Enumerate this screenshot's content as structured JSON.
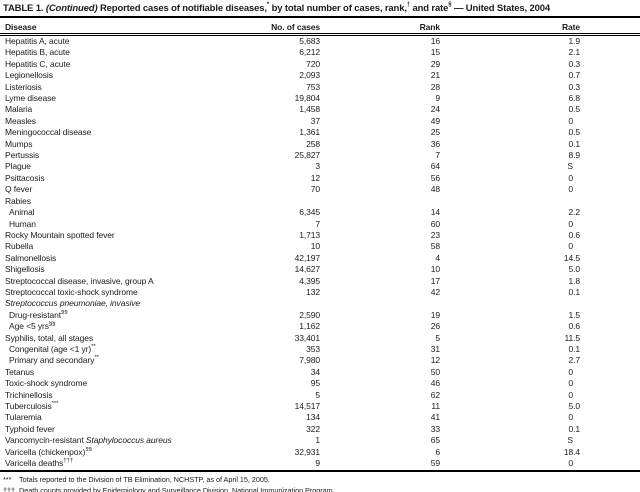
{
  "title": {
    "parts": [
      {
        "t": "TABLE 1. "
      },
      {
        "t": "(Continued)",
        "i": true
      },
      {
        "t": " Reported cases of notifiable diseases,"
      },
      {
        "t": "*",
        "sup": true
      },
      {
        "t": " by total number of cases, rank,"
      },
      {
        "t": "†",
        "sup": true
      },
      {
        "t": " and rate"
      },
      {
        "t": "§",
        "sup": true
      },
      {
        "t": " — United States, 2004"
      }
    ]
  },
  "table": {
    "columns": [
      "Disease",
      "No. of cases",
      "Rank",
      "Rate"
    ],
    "rows": [
      {
        "label": [
          {
            "t": "Hepatitis A, acute"
          }
        ],
        "cases": "5,683",
        "rank": "16",
        "rate": "1.9"
      },
      {
        "label": [
          {
            "t": "Hepatitis B, acute"
          }
        ],
        "cases": "6,212",
        "rank": "15",
        "rate": "2.1"
      },
      {
        "label": [
          {
            "t": "Hepatitis C, acute"
          }
        ],
        "cases": "720",
        "rank": "29",
        "rate": "0.3"
      },
      {
        "label": [
          {
            "t": "Legionellosis"
          }
        ],
        "cases": "2,093",
        "rank": "21",
        "rate": "0.7"
      },
      {
        "label": [
          {
            "t": "Listeriosis"
          }
        ],
        "cases": "753",
        "rank": "28",
        "rate": "0.3"
      },
      {
        "label": [
          {
            "t": "Lyme disease"
          }
        ],
        "cases": "19,804",
        "rank": "9",
        "rate": "6.8"
      },
      {
        "label": [
          {
            "t": "Malaria"
          }
        ],
        "cases": "1,458",
        "rank": "24",
        "rate": "0.5"
      },
      {
        "label": [
          {
            "t": "Measles"
          }
        ],
        "cases": "37",
        "rank": "49",
        "rate": "0"
      },
      {
        "label": [
          {
            "t": "Meningococcal disease"
          }
        ],
        "cases": "1,361",
        "rank": "25",
        "rate": "0.5"
      },
      {
        "label": [
          {
            "t": "Mumps"
          }
        ],
        "cases": "258",
        "rank": "36",
        "rate": "0.1"
      },
      {
        "label": [
          {
            "t": "Pertussis"
          }
        ],
        "cases": "25,827",
        "rank": "7",
        "rate": "8.9"
      },
      {
        "label": [
          {
            "t": "Plague"
          }
        ],
        "cases": "3",
        "rank": "64",
        "rate": "S"
      },
      {
        "label": [
          {
            "t": "Psittacosis"
          }
        ],
        "cases": "12",
        "rank": "56",
        "rate": "0"
      },
      {
        "label": [
          {
            "t": "Q fever"
          }
        ],
        "cases": "70",
        "rank": "48",
        "rate": "0"
      },
      {
        "label": [
          {
            "t": "Rabies"
          }
        ],
        "cases": "",
        "rank": "",
        "rate": "",
        "group": true
      },
      {
        "label": [
          {
            "t": "Animal"
          }
        ],
        "cases": "6,345",
        "rank": "14",
        "rate": "2.2",
        "indent": true
      },
      {
        "label": [
          {
            "t": "Human"
          }
        ],
        "cases": "7",
        "rank": "60",
        "rate": "0",
        "indent": true
      },
      {
        "label": [
          {
            "t": "Rocky Mountain spotted fever"
          }
        ],
        "cases": "1,713",
        "rank": "23",
        "rate": "0.6"
      },
      {
        "label": [
          {
            "t": "Rubella"
          }
        ],
        "cases": "10",
        "rank": "58",
        "rate": "0"
      },
      {
        "label": [
          {
            "t": "Salmonellosis"
          }
        ],
        "cases": "42,197",
        "rank": "4",
        "rate": "14.5"
      },
      {
        "label": [
          {
            "t": "Shigellosis"
          }
        ],
        "cases": "14,627",
        "rank": "10",
        "rate": "5.0"
      },
      {
        "label": [
          {
            "t": "Streptococcal disease, invasive, group A"
          }
        ],
        "cases": "4,395",
        "rank": "17",
        "rate": "1.8"
      },
      {
        "label": [
          {
            "t": "Streptococcal toxic-shock syndrome"
          }
        ],
        "cases": "132",
        "rank": "42",
        "rate": "0.1"
      },
      {
        "label": [
          {
            "t": "Streptococcus pneumoniae, invasive",
            "i": true
          }
        ],
        "cases": "",
        "rank": "",
        "rate": "",
        "group": true
      },
      {
        "label": [
          {
            "t": "Drug-resistant"
          },
          {
            "t": "§§",
            "sup": true
          }
        ],
        "cases": "2,590",
        "rank": "19",
        "rate": "1.5",
        "indent": true
      },
      {
        "label": [
          {
            "t": "Age <5 yrs"
          },
          {
            "t": "§§",
            "sup": true
          }
        ],
        "cases": "1,162",
        "rank": "26",
        "rate": "0.6",
        "indent": true
      },
      {
        "label": [
          {
            "t": "Syphilis, total, all stages"
          }
        ],
        "cases": "33,401",
        "rank": "5",
        "rate": "11.5"
      },
      {
        "label": [
          {
            "t": "Congenital (age <1 yr)"
          },
          {
            "t": "**",
            "sup": true
          }
        ],
        "cases": "353",
        "rank": "31",
        "rate": "0.1",
        "indent": true
      },
      {
        "label": [
          {
            "t": "Primary and secondary"
          },
          {
            "t": "**",
            "sup": true
          }
        ],
        "cases": "7,980",
        "rank": "12",
        "rate": "2.7",
        "indent": true
      },
      {
        "label": [
          {
            "t": "Tetanus"
          }
        ],
        "cases": "34",
        "rank": "50",
        "rate": "0"
      },
      {
        "label": [
          {
            "t": "Toxic-shock syndrome"
          }
        ],
        "cases": "95",
        "rank": "46",
        "rate": "0"
      },
      {
        "label": [
          {
            "t": "Trichinellosis"
          }
        ],
        "cases": "5",
        "rank": "62",
        "rate": "0"
      },
      {
        "label": [
          {
            "t": "Tuberculosis"
          },
          {
            "t": "***",
            "sup": true
          }
        ],
        "cases": "14,517",
        "rank": "11",
        "rate": "5.0"
      },
      {
        "label": [
          {
            "t": "Tularemia"
          }
        ],
        "cases": "134",
        "rank": "41",
        "rate": "0"
      },
      {
        "label": [
          {
            "t": "Typhoid fever"
          }
        ],
        "cases": "322",
        "rank": "33",
        "rate": "0.1"
      },
      {
        "label": [
          {
            "t": "Vancomycin-resistant "
          },
          {
            "t": "Staphylococcus aureus",
            "i": true
          }
        ],
        "cases": "1",
        "rank": "65",
        "rate": "S"
      },
      {
        "label": [
          {
            "t": "Varicella (chickenpox)"
          },
          {
            "t": "§§",
            "sup": true
          }
        ],
        "cases": "32,931",
        "rank": "6",
        "rate": "18.4"
      },
      {
        "label": [
          {
            "t": "Varicella deaths"
          },
          {
            "t": "†††",
            "sup": true
          }
        ],
        "cases": "9",
        "rank": "59",
        "rate": "0"
      }
    ]
  },
  "footnotes": [
    {
      "marker": "***",
      "text": "Totals reported to the Division of TB Elimination, NCHSTP, as of April 15, 2005."
    },
    {
      "marker": "†††",
      "text": "Death counts provided by Epidemiology and Surveillance Division, National Immunization Program."
    }
  ]
}
